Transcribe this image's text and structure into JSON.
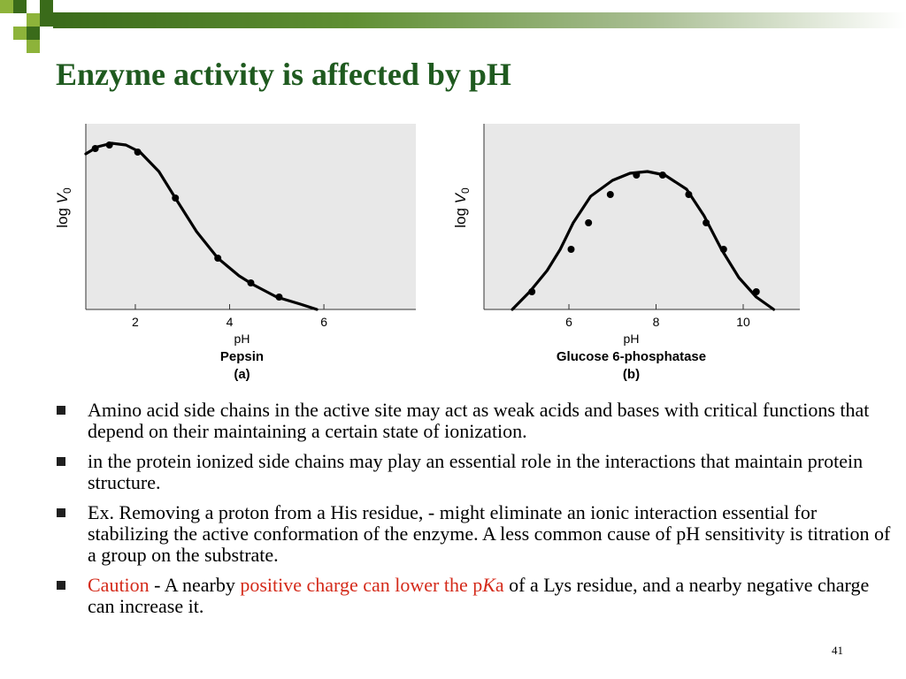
{
  "title": "Enzyme activity is affected by pH",
  "colors": {
    "title": "#1f5a1f",
    "accent_red": "#d42a1a",
    "deco_dark": "#3a6b1a",
    "deco_light": "#8db33a",
    "plot_bg": "#e8e8e8"
  },
  "chart_data": [
    {
      "type": "line",
      "panel": "(a)",
      "name": "Pepsin",
      "xlabel": "pH",
      "ylabel": "log V0",
      "xticks": [
        2,
        4,
        6
      ],
      "xlim": [
        0.95,
        7.95
      ],
      "ylim": [
        0,
        1
      ],
      "curve": [
        [
          0.95,
          0.88
        ],
        [
          1.2,
          0.92
        ],
        [
          1.5,
          0.94
        ],
        [
          1.8,
          0.93
        ],
        [
          2.1,
          0.89
        ],
        [
          2.5,
          0.78
        ],
        [
          2.85,
          0.63
        ],
        [
          3.3,
          0.44
        ],
        [
          3.75,
          0.29
        ],
        [
          4.2,
          0.19
        ],
        [
          4.5,
          0.14
        ],
        [
          5.0,
          0.07
        ],
        [
          5.5,
          0.03
        ],
        [
          5.85,
          0.0
        ]
      ],
      "points": [
        [
          1.15,
          0.91
        ],
        [
          1.45,
          0.93
        ],
        [
          2.05,
          0.89
        ],
        [
          2.85,
          0.63
        ],
        [
          3.75,
          0.29
        ],
        [
          4.45,
          0.15
        ],
        [
          5.05,
          0.07
        ]
      ]
    },
    {
      "type": "line",
      "panel": "(b)",
      "name": "Glucose 6-phosphatase",
      "xlabel": "pH",
      "ylabel": "log V0",
      "xticks": [
        6,
        8,
        10
      ],
      "xlim": [
        4.05,
        11.3
      ],
      "ylim": [
        0,
        1
      ],
      "curve": [
        [
          4.7,
          0.0
        ],
        [
          5.1,
          0.1
        ],
        [
          5.5,
          0.22
        ],
        [
          5.8,
          0.34
        ],
        [
          6.1,
          0.49
        ],
        [
          6.5,
          0.64
        ],
        [
          7.0,
          0.73
        ],
        [
          7.4,
          0.77
        ],
        [
          7.8,
          0.78
        ],
        [
          8.2,
          0.76
        ],
        [
          8.7,
          0.68
        ],
        [
          9.1,
          0.53
        ],
        [
          9.5,
          0.34
        ],
        [
          9.9,
          0.18
        ],
        [
          10.3,
          0.07
        ],
        [
          10.7,
          0.0
        ]
      ],
      "points": [
        [
          5.15,
          0.1
        ],
        [
          6.05,
          0.34
        ],
        [
          6.45,
          0.49
        ],
        [
          6.95,
          0.65
        ],
        [
          7.55,
          0.76
        ],
        [
          8.15,
          0.76
        ],
        [
          8.75,
          0.65
        ],
        [
          9.15,
          0.49
        ],
        [
          9.55,
          0.34
        ],
        [
          10.3,
          0.1
        ]
      ]
    }
  ],
  "bullets": [
    {
      "segments": [
        {
          "text": "Amino acid side chains in the active site may act as weak acids and bases with critical functions that depend on their maintaining a certain state of ionization.",
          "color": ""
        }
      ]
    },
    {
      "segments": [
        {
          "text": "in the protein ionized side chains may play an essential role in the interactions that maintain protein structure.",
          "color": ""
        }
      ]
    },
    {
      "segments": [
        {
          "text": "Ex. Removing a proton from a His residue, - might eliminate an ionic interaction essential for stabilizing the active conformation of the enzyme. A less common cause of pH sensitivity is titration of a group on the substrate.",
          "color": ""
        }
      ]
    },
    {
      "segments": [
        {
          "text": "Caution",
          "color": "red"
        },
        {
          "text": " - A nearby ",
          "color": ""
        },
        {
          "text": "positive charge can lower the p",
          "color": "red"
        },
        {
          "text": "K",
          "color": "red",
          "italic": true
        },
        {
          "text": "a",
          "color": "red"
        },
        {
          "text": " of a Lys residue, and a nearby negative charge can increase it.",
          "color": ""
        }
      ]
    }
  ],
  "page_number": "41"
}
